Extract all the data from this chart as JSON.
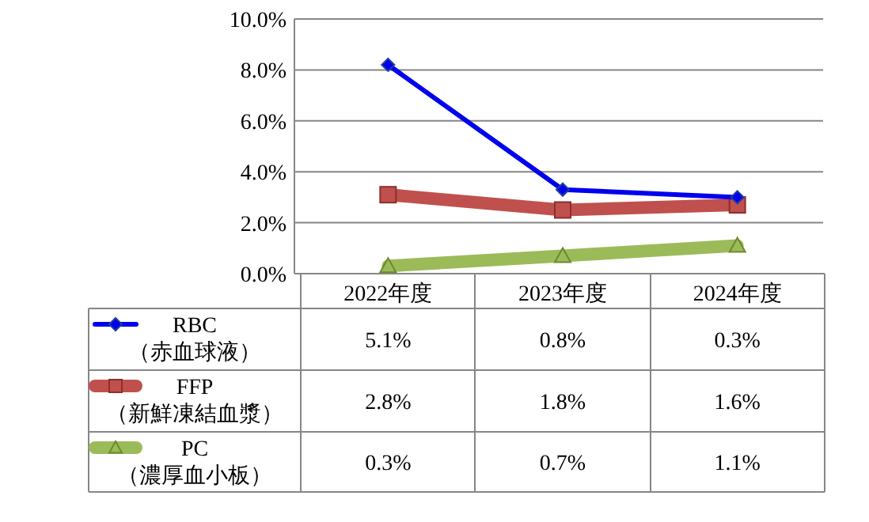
{
  "chart_data": {
    "type": "line",
    "categories": [
      "2022年度",
      "2023年度",
      "2024年度"
    ],
    "series": [
      {
        "name": "RBC\n（赤血球液）",
        "color": "#0000ee",
        "marker": "diamond",
        "values": [
          8.2,
          3.3,
          3.0
        ]
      },
      {
        "name": "FFP\n（新鮮凍結血漿）",
        "color": "#c0504d",
        "marker": "square",
        "values": [
          3.1,
          2.5,
          2.7
        ]
      },
      {
        "name": "PC\n（濃厚血小板）",
        "color": "#9bbb59",
        "marker": "triangle",
        "values": [
          0.3,
          0.7,
          1.1
        ]
      }
    ],
    "annotations": [
      "5.1%",
      "0.8%",
      "0.3%",
      "2.8%",
      "1.8%",
      "1.6%",
      "0.3%",
      "0.7%",
      "1.1%"
    ],
    "ylim": [
      0,
      10
    ],
    "yticks": [
      {
        "value": 0,
        "label": "0.0%"
      },
      {
        "value": 2,
        "label": "2.0%"
      },
      {
        "value": 4,
        "label": "4.0%"
      },
      {
        "value": 6,
        "label": "6.0%"
      },
      {
        "value": 8,
        "label": "8.0%"
      },
      {
        "value": 10,
        "label": "10.0%"
      }
    ],
    "grid": "y",
    "legend": "bottom left"
  }
}
